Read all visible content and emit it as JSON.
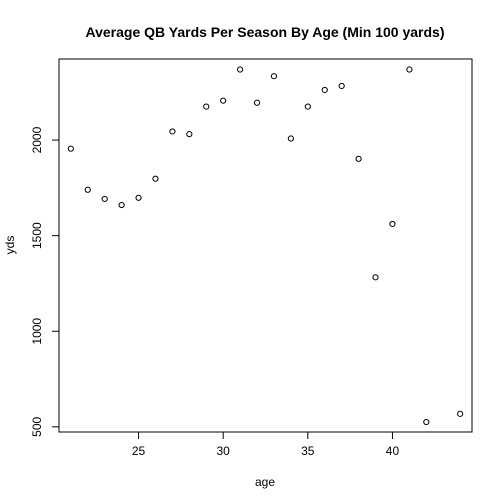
{
  "chart_data": {
    "type": "scatter",
    "title": "Average QB Yards Per Season By Age (Min 100 yards)",
    "xlabel": "age",
    "ylabel": "yds",
    "xlim": [
      20.3,
      44.7
    ],
    "ylim": [
      473,
      2424
    ],
    "x_ticks": [
      25,
      30,
      35,
      40
    ],
    "y_ticks": [
      500,
      1000,
      1500,
      2000
    ],
    "x_tick_labels": [
      "25",
      "30",
      "35",
      "40"
    ],
    "y_tick_labels": [
      "500",
      "1000",
      "1500",
      "2000"
    ],
    "grid": false,
    "point_style": "open-circle",
    "points": [
      {
        "x": 21,
        "y": 1955
      },
      {
        "x": 22,
        "y": 1740
      },
      {
        "x": 23,
        "y": 1692
      },
      {
        "x": 24,
        "y": 1660
      },
      {
        "x": 25,
        "y": 1698
      },
      {
        "x": 26,
        "y": 1798
      },
      {
        "x": 27,
        "y": 2045
      },
      {
        "x": 28,
        "y": 2031
      },
      {
        "x": 29,
        "y": 2175
      },
      {
        "x": 30,
        "y": 2206
      },
      {
        "x": 31,
        "y": 2369
      },
      {
        "x": 32,
        "y": 2195
      },
      {
        "x": 33,
        "y": 2334
      },
      {
        "x": 34,
        "y": 2008
      },
      {
        "x": 35,
        "y": 2175
      },
      {
        "x": 36,
        "y": 2262
      },
      {
        "x": 37,
        "y": 2283
      },
      {
        "x": 38,
        "y": 1902
      },
      {
        "x": 39,
        "y": 1282
      },
      {
        "x": 40,
        "y": 1561
      },
      {
        "x": 41,
        "y": 2369
      },
      {
        "x": 42,
        "y": 525
      },
      {
        "x": 44,
        "y": 568
      }
    ]
  }
}
